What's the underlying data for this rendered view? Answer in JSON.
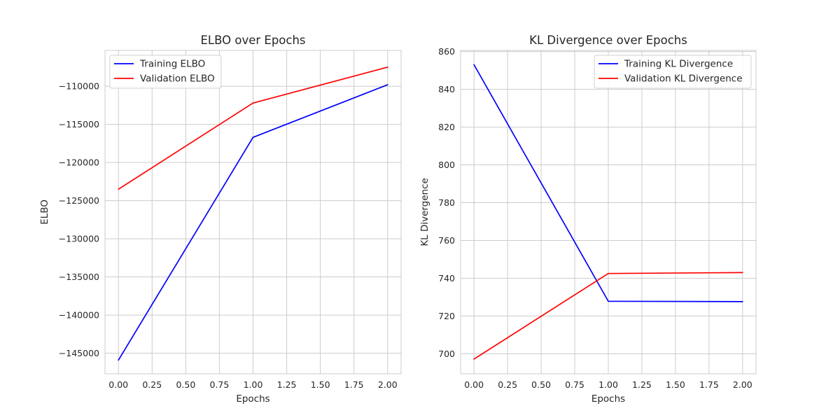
{
  "chart_data": [
    {
      "type": "line",
      "title": "ELBO over Epochs",
      "xlabel": "Epochs",
      "ylabel": "ELBO",
      "xlim": [
        -0.1,
        2.1
      ],
      "ylim": [
        -147700,
        -105300
      ],
      "x_ticks": [
        0.0,
        0.25,
        0.5,
        0.75,
        1.0,
        1.25,
        1.5,
        1.75,
        2.0
      ],
      "x_tick_labels": [
        "0.00",
        "0.25",
        "0.50",
        "0.75",
        "1.00",
        "1.25",
        "1.50",
        "1.75",
        "2.00"
      ],
      "y_ticks": [
        -145000,
        -140000,
        -135000,
        -130000,
        -125000,
        -120000,
        -115000,
        -110000
      ],
      "y_tick_labels": [
        "−145000",
        "−140000",
        "−135000",
        "−130000",
        "−125000",
        "−120000",
        "−115000",
        "−110000"
      ],
      "grid": true,
      "legend_position": "upper-left",
      "x": [
        0,
        1,
        2
      ],
      "series": [
        {
          "name": "Training ELBO",
          "color": "#0000ff",
          "values": [
            -145900,
            -116700,
            -109800
          ]
        },
        {
          "name": "Validation ELBO",
          "color": "#ff0000",
          "values": [
            -123500,
            -112200,
            -107500
          ]
        }
      ]
    },
    {
      "type": "line",
      "title": "KL Divergence over Epochs",
      "xlabel": "Epochs",
      "ylabel": "KL Divergence",
      "xlim": [
        -0.1,
        2.1
      ],
      "ylim": [
        689.4,
        860.6
      ],
      "x_ticks": [
        0.0,
        0.25,
        0.5,
        0.75,
        1.0,
        1.25,
        1.5,
        1.75,
        2.0
      ],
      "x_tick_labels": [
        "0.00",
        "0.25",
        "0.50",
        "0.75",
        "1.00",
        "1.25",
        "1.50",
        "1.75",
        "2.00"
      ],
      "y_ticks": [
        700,
        720,
        740,
        760,
        780,
        800,
        820,
        840,
        860
      ],
      "y_tick_labels": [
        "700",
        "720",
        "740",
        "760",
        "780",
        "800",
        "820",
        "840",
        "860"
      ],
      "grid": true,
      "legend_position": "upper-right",
      "x": [
        0,
        1,
        2
      ],
      "series": [
        {
          "name": "Training KL Divergence",
          "color": "#0000ff",
          "values": [
            853.0,
            727.8,
            727.6
          ]
        },
        {
          "name": "Validation KL Divergence",
          "color": "#ff0000",
          "values": [
            697.2,
            742.5,
            743.0
          ]
        }
      ]
    }
  ]
}
